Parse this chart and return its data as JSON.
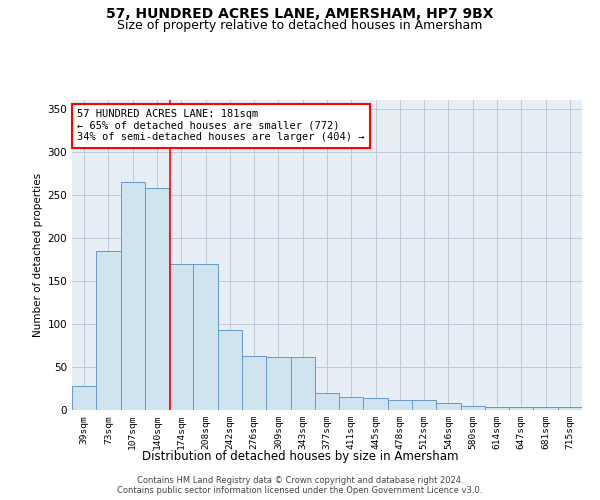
{
  "title": "57, HUNDRED ACRES LANE, AMERSHAM, HP7 9BX",
  "subtitle": "Size of property relative to detached houses in Amersham",
  "xlabel": "Distribution of detached houses by size in Amersham",
  "ylabel": "Number of detached properties",
  "bar_labels": [
    "39sqm",
    "73sqm",
    "107sqm",
    "140sqm",
    "174sqm",
    "208sqm",
    "242sqm",
    "276sqm",
    "309sqm",
    "343sqm",
    "377sqm",
    "411sqm",
    "445sqm",
    "478sqm",
    "512sqm",
    "546sqm",
    "580sqm",
    "614sqm",
    "647sqm",
    "681sqm",
    "715sqm"
  ],
  "bar_heights": [
    28,
    185,
    265,
    258,
    170,
    170,
    93,
    63,
    62,
    62,
    20,
    15,
    14,
    12,
    12,
    8,
    5,
    4,
    3,
    3,
    3
  ],
  "bar_color": "#d0e4f0",
  "bar_edge_color": "#6699cc",
  "property_line_x": 3.52,
  "annotation_text": "57 HUNDRED ACRES LANE: 181sqm\n← 65% of detached houses are smaller (772)\n34% of semi-detached houses are larger (404) →",
  "annotation_box_color": "white",
  "annotation_box_edge": "red",
  "red_line_color": "red",
  "ylim": [
    0,
    360
  ],
  "yticks": [
    0,
    50,
    100,
    150,
    200,
    250,
    300,
    350
  ],
  "grid_color": "#c0c8d8",
  "plot_bg_color": "#e8eef5",
  "footer_line1": "Contains HM Land Registry data © Crown copyright and database right 2024.",
  "footer_line2": "Contains public sector information licensed under the Open Government Licence v3.0.",
  "title_fontsize": 10,
  "subtitle_fontsize": 9,
  "annotation_fontsize": 7.5
}
